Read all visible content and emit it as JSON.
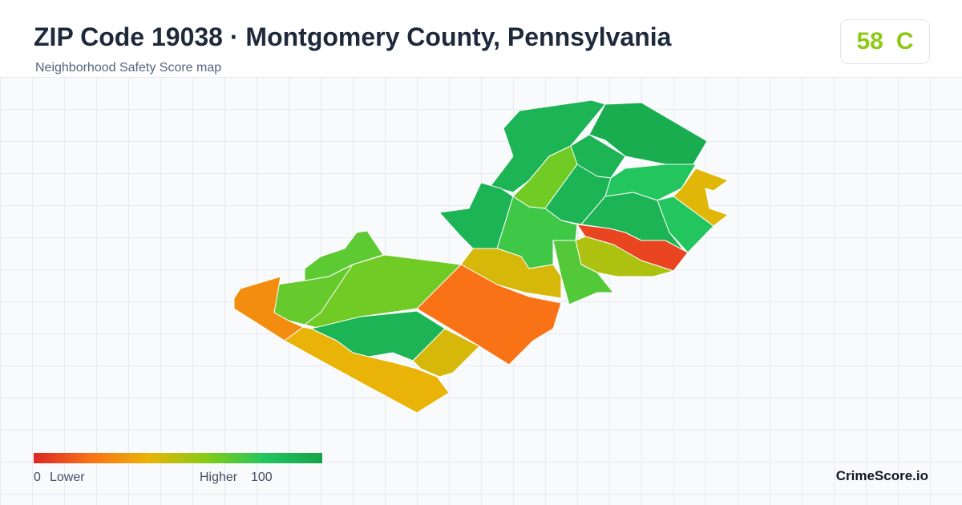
{
  "header": {
    "title": "ZIP Code 19038 · Montgomery County, Pennsylvania",
    "subtitle": "Neighborhood Safety Score map"
  },
  "score": {
    "value": 58,
    "grade": "C"
  },
  "legend": {
    "min": 0,
    "min_label": "Lower",
    "max_label": "Higher",
    "max": 100,
    "colorscale": [
      "#dc2626",
      "#f97316",
      "#eab308",
      "#84cc16",
      "#22c55e",
      "#16a34a"
    ]
  },
  "brand": "CrimeScore.io",
  "regions": [
    {
      "score": 90
    },
    {
      "score": 94
    },
    {
      "score": 90
    },
    {
      "score": 64
    },
    {
      "score": 90
    },
    {
      "score": 80
    },
    {
      "score": 42
    },
    {
      "score": 90
    },
    {
      "score": 80
    },
    {
      "score": 8
    },
    {
      "score": 52
    },
    {
      "score": 70
    },
    {
      "score": 74
    },
    {
      "score": 90
    },
    {
      "score": 44
    },
    {
      "score": 20
    },
    {
      "score": 64
    },
    {
      "score": 66
    },
    {
      "score": 68
    },
    {
      "score": 28
    },
    {
      "score": 90
    },
    {
      "score": 40
    },
    {
      "score": 44
    }
  ]
}
